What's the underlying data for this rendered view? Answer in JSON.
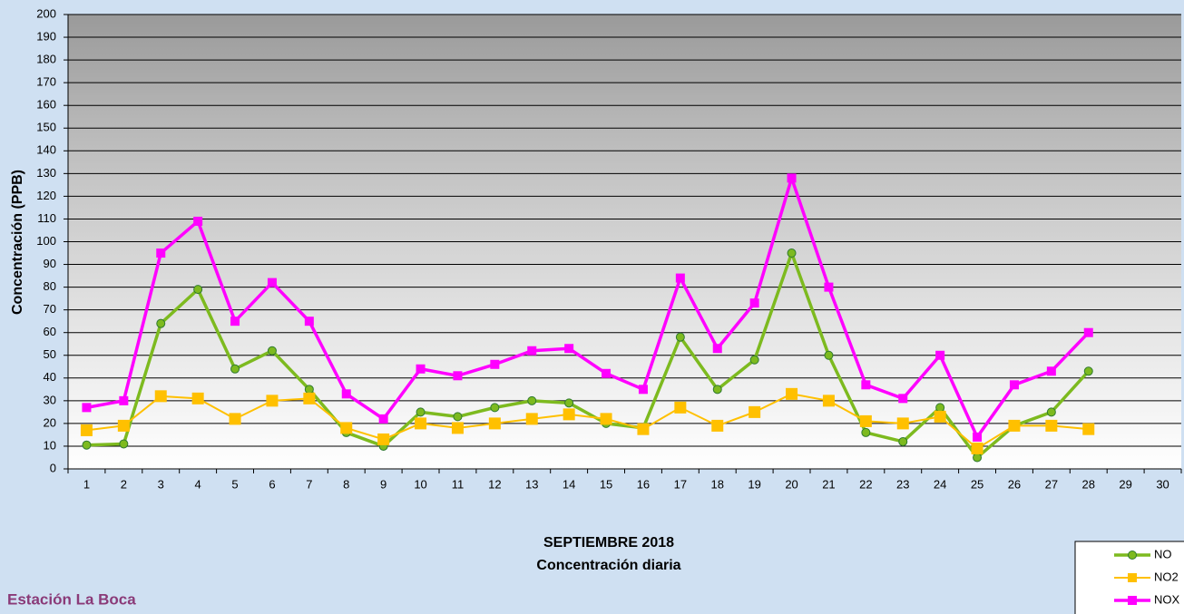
{
  "chart_data": {
    "type": "line",
    "title": "SEPTIEMBRE 2018",
    "subtitle": "Concentración diaria",
    "station": "Estación La Boca",
    "y_label": "Concentración  (PPB)",
    "categories": [
      "1",
      "2",
      "3",
      "4",
      "5",
      "6",
      "7",
      "8",
      "9",
      "10",
      "11",
      "12",
      "13",
      "14",
      "15",
      "16",
      "17",
      "18",
      "19",
      "20",
      "21",
      "22",
      "23",
      "24",
      "25",
      "26",
      "27",
      "28",
      "29",
      "30"
    ],
    "series": [
      {
        "name": "NO",
        "color": "#7dba1f",
        "marker": "circle",
        "values": [
          10.5,
          11,
          64,
          79,
          44,
          52,
          35,
          16,
          10,
          25,
          23,
          27,
          30,
          29,
          20,
          18,
          58,
          35,
          48,
          95,
          50,
          16,
          12,
          27,
          5,
          19,
          25,
          43,
          null,
          null
        ]
      },
      {
        "name": "NO2",
        "color": "#ffc000",
        "marker": "square",
        "values": [
          17,
          19,
          32,
          31,
          22,
          30,
          31,
          18,
          13,
          20,
          18,
          20,
          22,
          24,
          22,
          17.5,
          27,
          19,
          25,
          33,
          30,
          21,
          20,
          23,
          9,
          19,
          19,
          17.5,
          null,
          null
        ]
      },
      {
        "name": "NOX",
        "color": "#ff00ff",
        "marker": "square",
        "values": [
          27,
          30,
          95,
          109,
          65,
          82,
          65,
          33,
          22,
          44,
          41,
          46,
          52,
          53,
          42,
          35,
          84,
          53,
          73,
          128,
          80,
          37,
          31,
          50,
          14,
          37,
          43,
          60,
          null,
          null
        ]
      }
    ],
    "ylim": [
      0,
      200
    ],
    "yticks": [
      0,
      10,
      20,
      30,
      40,
      50,
      60,
      70,
      80,
      90,
      100,
      110,
      120,
      130,
      140,
      150,
      160,
      170,
      180,
      190,
      200
    ],
    "grid": true
  }
}
